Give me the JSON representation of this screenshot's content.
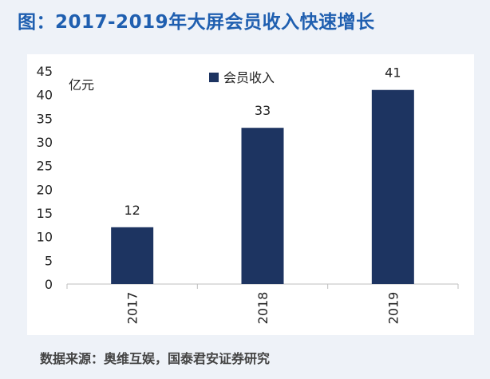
{
  "title": "图：2017-2019年大屏会员收入快速增长",
  "source": "数据来源：奥维互娱，国泰君安证券研究",
  "colors": {
    "title": "#1f5fb0",
    "bar": "#1d3461",
    "axis": "#bfbfbf"
  },
  "chart_data": {
    "type": "bar",
    "categories": [
      "2017",
      "2018",
      "2019"
    ],
    "series": [
      {
        "name": "会员收入",
        "values": [
          12,
          33,
          41
        ]
      }
    ],
    "data_labels": [
      "12",
      "33",
      "41"
    ],
    "unit_label": "亿元",
    "ylim": [
      0,
      45
    ],
    "yticks": [
      0,
      5,
      10,
      15,
      20,
      25,
      30,
      35,
      40,
      45
    ],
    "grid": false,
    "legend": "top"
  }
}
